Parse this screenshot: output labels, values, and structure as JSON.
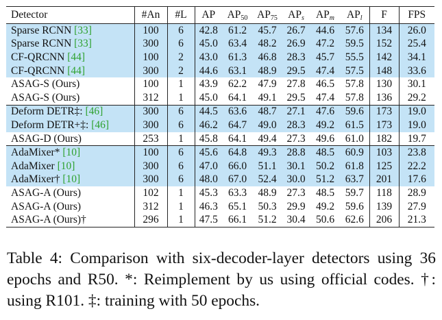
{
  "table": {
    "headers": {
      "detector": "Detector",
      "an": "#An",
      "l": "#L",
      "ap": "AP",
      "ap50_base": "AP",
      "ap50_sub": "50",
      "ap75_base": "AP",
      "ap75_sub": "75",
      "aps_base": "AP",
      "aps_sub": "s",
      "apm_base": "AP",
      "apm_sub": "m",
      "apl_base": "AP",
      "apl_sub": "l",
      "f": "F",
      "fps": "FPS"
    },
    "rows": [
      {
        "name": "Sparse RCNN ",
        "ref": "[33]",
        "an": "100",
        "l": "6",
        "ap": "42.8",
        "ap50": "61.2",
        "ap75": "45.7",
        "aps": "26.7",
        "apm": "44.6",
        "apl": "57.6",
        "f": "134",
        "fps": "26.0",
        "highlight": true
      },
      {
        "name": "Sparse RCNN ",
        "ref": "[33]",
        "an": "300",
        "l": "6",
        "ap": "45.0",
        "ap50": "63.4",
        "ap75": "48.2",
        "aps": "26.9",
        "apm": "47.2",
        "apl": "59.5",
        "f": "152",
        "fps": "25.4",
        "highlight": true
      },
      {
        "name": "CF-QRCNN ",
        "ref": "[44]",
        "an": "100",
        "l": "2",
        "ap": "43.0",
        "ap50": "61.3",
        "ap75": "46.8",
        "aps": "28.3",
        "apm": "45.7",
        "apl": "55.5",
        "f": "142",
        "fps": "34.1",
        "highlight": true
      },
      {
        "name": "CF-QRCNN ",
        "ref": "[44]",
        "an": "300",
        "l": "2",
        "ap": "44.6",
        "ap50": "63.1",
        "ap75": "48.9",
        "aps": "29.5",
        "apm": "47.4",
        "apl": "57.5",
        "f": "148",
        "fps": "33.6",
        "highlight": true
      },
      {
        "name": "ASAG-S (Ours)",
        "ref": "",
        "an": "100",
        "l": "1",
        "ap": "43.9",
        "ap50": "62.2",
        "ap75": "47.9",
        "aps": "27.8",
        "apm": "46.5",
        "apl": "57.8",
        "f": "130",
        "fps": "30.1",
        "highlight": false
      },
      {
        "name": "ASAG-S (Ours)",
        "ref": "",
        "an": "312",
        "l": "1",
        "ap": "45.0",
        "ap50": "64.1",
        "ap75": "49.1",
        "aps": "29.5",
        "apm": "47.4",
        "apl": "57.8",
        "f": "136",
        "fps": "29.2",
        "highlight": false
      },
      {
        "name": "Deform DETR‡: ",
        "ref": "[46]",
        "an": "300",
        "l": "6",
        "ap": "44.5",
        "ap50": "63.6",
        "ap75": "48.7",
        "aps": "27.1",
        "apm": "47.6",
        "apl": "59.6",
        "f": "173",
        "fps": "19.0",
        "highlight": true,
        "sep": true
      },
      {
        "name": "Deform DETR+‡: ",
        "ref": "[46]",
        "an": "300",
        "l": "6",
        "ap": "46.2",
        "ap50": "64.7",
        "ap75": "49.0",
        "aps": "28.3",
        "apm": "49.2",
        "apl": "61.5",
        "f": "173",
        "fps": "19.0",
        "highlight": true
      },
      {
        "name": "ASAG-D (Ours)",
        "ref": "",
        "an": "253",
        "l": "1",
        "ap": "45.8",
        "ap50": "64.1",
        "ap75": "49.4",
        "aps": "27.3",
        "apm": "49.6",
        "apl": "61.0",
        "f": "182",
        "fps": "19.7",
        "highlight": false
      },
      {
        "name": "AdaMixer* ",
        "ref": "[10]",
        "an": "100",
        "l": "6",
        "ap": "45.6",
        "ap50": "64.8",
        "ap75": "49.3",
        "aps": "28.8",
        "apm": "48.5",
        "apl": "60.9",
        "f": "103",
        "fps": "23.8",
        "highlight": true,
        "sep": true
      },
      {
        "name": "AdaMixer ",
        "ref": "[10]",
        "an": "300",
        "l": "6",
        "ap": "47.0",
        "ap50": "66.0",
        "ap75": "51.1",
        "aps": "30.1",
        "apm": "50.2",
        "apl": "61.8",
        "f": "125",
        "fps": "22.2",
        "highlight": true
      },
      {
        "name": "AdaMixer† ",
        "ref": "[10]",
        "an": "300",
        "l": "6",
        "ap": "48.0",
        "ap50": "67.0",
        "ap75": "52.4",
        "aps": "30.0",
        "apm": "51.2",
        "apl": "63.7",
        "f": "201",
        "fps": "17.6",
        "highlight": true
      },
      {
        "name": "ASAG-A (Ours)",
        "ref": "",
        "an": "102",
        "l": "1",
        "ap": "45.3",
        "ap50": "63.3",
        "ap75": "48.9",
        "aps": "27.3",
        "apm": "48.5",
        "apl": "59.7",
        "f": "118",
        "fps": "28.9",
        "highlight": false
      },
      {
        "name": "ASAG-A (Ours)",
        "ref": "",
        "an": "312",
        "l": "1",
        "ap": "46.3",
        "ap50": "65.1",
        "ap75": "50.3",
        "aps": "29.9",
        "apm": "49.2",
        "apl": "59.6",
        "f": "139",
        "fps": "27.9",
        "highlight": false
      },
      {
        "name": "ASAG-A (Ours)†",
        "ref": "",
        "an": "296",
        "l": "1",
        "ap": "47.5",
        "ap50": "66.1",
        "ap75": "51.2",
        "aps": "30.4",
        "apm": "50.6",
        "apl": "62.6",
        "f": "206",
        "fps": "21.3",
        "highlight": false
      }
    ]
  },
  "caption": "Table 4: Comparison with six-decoder-layer detectors using 36 epochs and R50. *: Reimplement by us using official codes. †: using R101. ‡: training with 50 epochs.",
  "colors": {
    "highlight_bg": "#c4e3f6",
    "citation": "#2ea12e"
  }
}
